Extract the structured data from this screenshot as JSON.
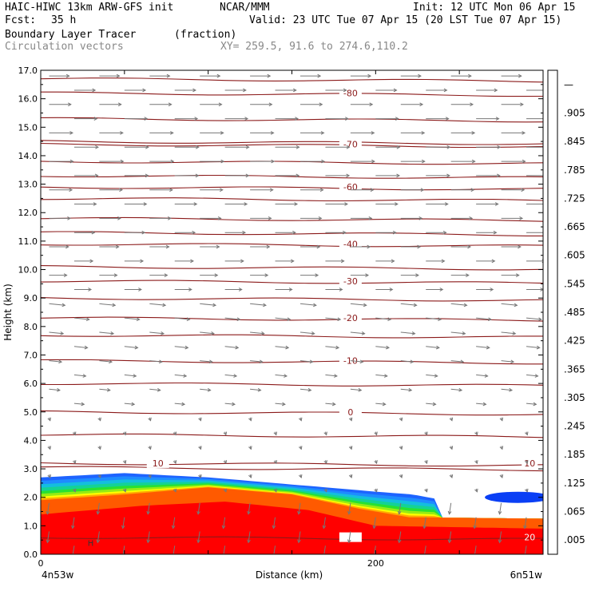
{
  "header": {
    "model": "HAIC-HIWC 13km ARW-GFS init",
    "org": "NCAR/MMM",
    "init": "Init: 12 UTC Mon 06 Apr 15",
    "fcst_label": "Fcst:",
    "fcst_value": "35 h",
    "valid": "Valid: 23 UTC Tue 07 Apr 15 (20 LST Tue 07 Apr 15)",
    "field": "Boundary Layer Tracer",
    "units": "(fraction)",
    "vectors": "Circulation vectors",
    "xy": "XY= 259.5, 91.6 to 274.6,110.2"
  },
  "chart_data": {
    "type": "heatmap",
    "xlabel": "Distance (km)",
    "ylabel": "Height (km)",
    "xlim": [
      0,
      300
    ],
    "ylim": [
      0,
      17
    ],
    "x_ticks": [
      {
        "value": 0,
        "label": "0"
      },
      {
        "value": 200,
        "label": "200"
      }
    ],
    "x_end_labels": {
      "left": "4n53w",
      "right": "6n51w"
    },
    "y_ticks": [
      "0.0",
      "1.0",
      "2.0",
      "3.0",
      "4.0",
      "5.0",
      "6.0",
      "7.0",
      "8.0",
      "9.0",
      "10.0",
      "11.0",
      "12.0",
      "13.0",
      "14.0",
      "15.0",
      "16.0",
      "17.0"
    ],
    "colorbar": {
      "labels": [
        ".005",
        ".065",
        ".125",
        ".185",
        ".245",
        ".305",
        ".365",
        ".425",
        ".485",
        ".545",
        ".605",
        ".665",
        ".725",
        ".785",
        ".845",
        ".905",
        "—"
      ],
      "colors": [
        "#ffffff",
        "#0a3ff5",
        "#1e64ff",
        "#1e8cff",
        "#14bede",
        "#14d296",
        "#28e132",
        "#5ae614",
        "#96ec14",
        "#c8f514",
        "#ffff00",
        "#ffd200",
        "#ffaa00",
        "#ff8200",
        "#ff5a00",
        "#ff2d00",
        "#ff0000",
        "#f00000"
      ]
    },
    "temperature_contours": {
      "units": "degC",
      "labeled": [
        {
          "label": "-80",
          "height_km": 16.2
        },
        {
          "label": "-70",
          "height_km": 14.4
        },
        {
          "label": "-60",
          "height_km": 12.9
        },
        {
          "label": "-40",
          "height_km": 10.9
        },
        {
          "label": "-30",
          "height_km": 9.6
        },
        {
          "label": "-20",
          "height_km": 8.3
        },
        {
          "label": "-10",
          "height_km": 6.8
        },
        {
          "label": "0",
          "height_km": 5.0
        },
        {
          "label": "10",
          "height_km": 3.2
        },
        {
          "label": "20",
          "height_km": 0.6
        }
      ],
      "unlabeled_heights_km": [
        16.7,
        15.3,
        14.5,
        13.8,
        13.3,
        12.5,
        11.8,
        11.3,
        10.1,
        9.0,
        7.7,
        6.0,
        4.2,
        3.05
      ]
    },
    "tracer_field": {
      "description_points_km": {
        "blue_top": [
          [
            0,
            2.7
          ],
          [
            50,
            2.85
          ],
          [
            100,
            2.7
          ],
          [
            150,
            2.45
          ],
          [
            200,
            2.2
          ],
          [
            222,
            2.1
          ],
          [
            236,
            1.95
          ]
        ],
        "yellow_top": [
          [
            0,
            1.9
          ],
          [
            50,
            2.1
          ],
          [
            100,
            2.35
          ],
          [
            150,
            2.1
          ],
          [
            190,
            1.6
          ],
          [
            220,
            1.3
          ],
          [
            300,
            1.25
          ]
        ],
        "red_top": [
          [
            0,
            1.4
          ],
          [
            60,
            1.7
          ],
          [
            110,
            1.85
          ],
          [
            160,
            1.55
          ],
          [
            200,
            1.0
          ],
          [
            300,
            0.9
          ]
        ],
        "isolated_blue_patch": [
          [
            270,
            2.0
          ],
          [
            300,
            2.0
          ]
        ]
      },
      "inner_labels": [
        {
          "label": "H",
          "x_km": 28,
          "height_km": 0.3
        }
      ]
    },
    "wind_vectors": {
      "upper_levels": "westerly (arrows pointing east), strongest near 13-15 km",
      "boundary_layer": "strong downward/vertical vectors in red tracer region"
    }
  }
}
